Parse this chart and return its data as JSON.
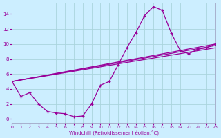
{
  "title": "",
  "xlabel": "Windchill (Refroidissement éolien,°C)",
  "ylabel": "",
  "bg_color": "#cceeff",
  "line_color": "#990099",
  "grid_color": "#aad4dd",
  "xlim": [
    0,
    23
  ],
  "ylim": [
    -0.5,
    15.5
  ],
  "xticks": [
    0,
    1,
    2,
    3,
    4,
    5,
    6,
    7,
    8,
    9,
    10,
    11,
    12,
    13,
    14,
    15,
    16,
    17,
    18,
    19,
    20,
    21,
    22,
    23
  ],
  "yticks": [
    0,
    2,
    4,
    6,
    8,
    10,
    12,
    14
  ],
  "curve": [
    [
      0,
      5.0
    ],
    [
      1,
      3.0
    ],
    [
      2,
      3.5
    ],
    [
      3,
      2.0
    ],
    [
      4,
      1.0
    ],
    [
      5,
      0.8
    ],
    [
      6,
      0.7
    ],
    [
      7,
      0.3
    ],
    [
      8,
      0.4
    ],
    [
      9,
      2.0
    ],
    [
      10,
      4.5
    ],
    [
      11,
      5.0
    ],
    [
      12,
      7.2
    ],
    [
      13,
      9.5
    ],
    [
      14,
      11.5
    ],
    [
      15,
      13.8
    ],
    [
      16,
      15.0
    ],
    [
      17,
      14.5
    ],
    [
      18,
      11.5
    ],
    [
      19,
      9.2
    ],
    [
      20,
      8.7
    ],
    [
      21,
      9.3
    ],
    [
      22,
      9.5
    ],
    [
      23,
      10.0
    ]
  ],
  "line_straight1": [
    [
      0,
      5.0
    ],
    [
      23,
      10.0
    ]
  ],
  "line_straight2": [
    [
      0,
      5.0
    ],
    [
      23,
      9.5
    ]
  ],
  "line_straight3": [
    [
      0,
      5.0
    ],
    [
      23,
      9.8
    ]
  ]
}
